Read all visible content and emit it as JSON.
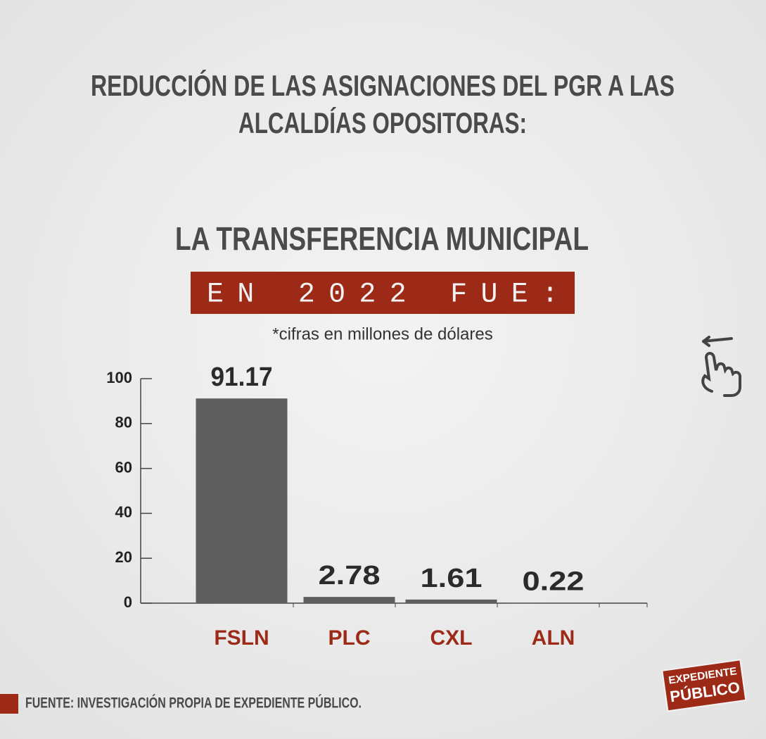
{
  "chart_data": {
    "type": "bar",
    "title": [
      "REDUCCIÓN DE LAS ASIGNACIONES DEL PGR A LAS",
      "ALCALDÍAS OPOSITORAS:"
    ],
    "subtitle": "LA TRANSFERENCIA MUNICIPAL",
    "banner": "EN 2022 FUE:",
    "note": "*cifras en millones de dólares",
    "categories": [
      "FSLN",
      "PLC",
      "CXL",
      "ALN"
    ],
    "values": [
      91.17,
      2.78,
      1.61,
      0.22
    ],
    "color": "#5e5e5e",
    "category_color": "#9c2a17",
    "ylim": [
      0,
      100
    ],
    "yticks": [
      0,
      20,
      40,
      60,
      80,
      100
    ],
    "grid": false,
    "source": "FUENTE: INVESTIGACIÓN PROPIA DE EXPEDIENTE PÚBLICO.",
    "logo": [
      "EXPEDIENTE",
      "PÚBLICO"
    ]
  }
}
